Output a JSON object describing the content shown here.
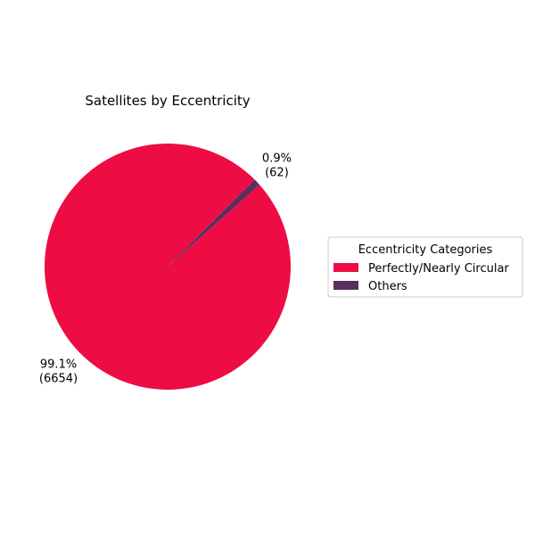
{
  "chart_data": {
    "type": "pie",
    "title": "Satellites by Eccentricity",
    "legend_title": "Eccentricity Categories",
    "legend_position": "right",
    "slices": [
      {
        "label": "Perfectly/Nearly Circular",
        "value": 6654,
        "percent_label": "99.1%",
        "count_label": "(6654)",
        "color": "#ee0c44"
      },
      {
        "label": "Others",
        "value": 62,
        "percent_label": "0.9%",
        "count_label": "(62)",
        "color": "#5b2e5e"
      }
    ]
  }
}
